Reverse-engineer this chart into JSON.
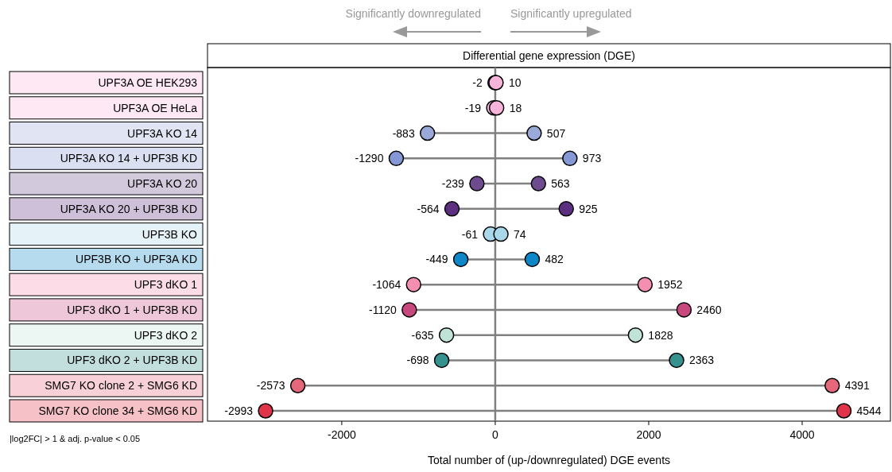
{
  "chart_data": {
    "type": "lollipop",
    "orientation": "horizontal",
    "title": "Differential gene expression (DGE)",
    "xlabel": "Total number of (up-/downregulated) DGE events",
    "categories": [
      "UPF3A OE HEK293",
      "UPF3A OE HeLa",
      "UPF3A KO 14",
      "UPF3A KO 14 + UPF3B KD",
      "UPF3A KO 20",
      "UPF3A KO 20 + UPF3B KD",
      "UPF3B KO",
      "UPF3B KO + UPF3A KD",
      "UPF3 dKO 1",
      "UPF3 dKO 1 + UPF3B KD",
      "UPF3 dKO 2",
      "UPF3 dKO 2 + UPF3B KD",
      "SMG7 KO clone 2 + SMG6 KD",
      "SMG7 KO clone 34 + SMG6 KD"
    ],
    "series": [
      {
        "values": [
          -2,
          -19,
          -883,
          -1290,
          -239,
          -564,
          -61,
          -449,
          -1064,
          -1120,
          -635,
          -698,
          -2573,
          -2993
        ],
        "colors": [
          "#f9b4dc",
          "#f9b4dc",
          "#9aa9d8",
          "#8597d4",
          "#6e4b8e",
          "#5c2f80",
          "#a9d8ea",
          "#0d87c8",
          "#f48fb1",
          "#c8487e",
          "#bfe3d6",
          "#35928f",
          "#e5687a",
          "#e0344a"
        ]
      },
      {
        "values": [
          10,
          18,
          507,
          973,
          563,
          925,
          74,
          482,
          1952,
          2460,
          1828,
          2363,
          4391,
          4544
        ],
        "colors": [
          "#f9b4dc",
          "#f9b4dc",
          "#9aa9d8",
          "#8597d4",
          "#6e4b8e",
          "#5c2f80",
          "#a9d8ea",
          "#0d87c8",
          "#f48fb1",
          "#c8487e",
          "#bfe3d6",
          "#35928f",
          "#e5687a",
          "#e0344a"
        ]
      }
    ],
    "xlim": [
      -3750,
      5150
    ],
    "xticks": [
      -2000,
      0,
      2000,
      4000
    ],
    "data_labels": true,
    "marker": "circle",
    "ref_lines": [
      {
        "axis": "x",
        "value": 0,
        "color": "#808080"
      }
    ],
    "annotations": [
      "Significantly downregulated",
      "Significantly upregulated",
      "|log2FC| > 1 & adj. p-value < 0.05"
    ]
  }
}
